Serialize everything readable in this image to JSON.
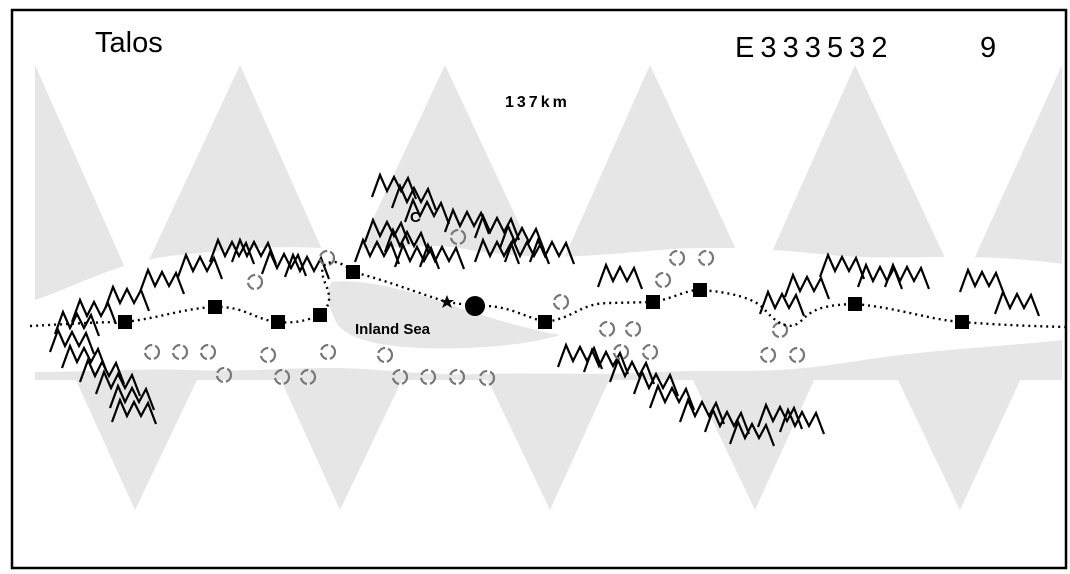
{
  "map": {
    "title": "Talos",
    "uwp": "E 3 3 3 5 3 2",
    "code": "9",
    "scale": "137km",
    "labels": [
      "C",
      "Inland Sea"
    ]
  }
}
